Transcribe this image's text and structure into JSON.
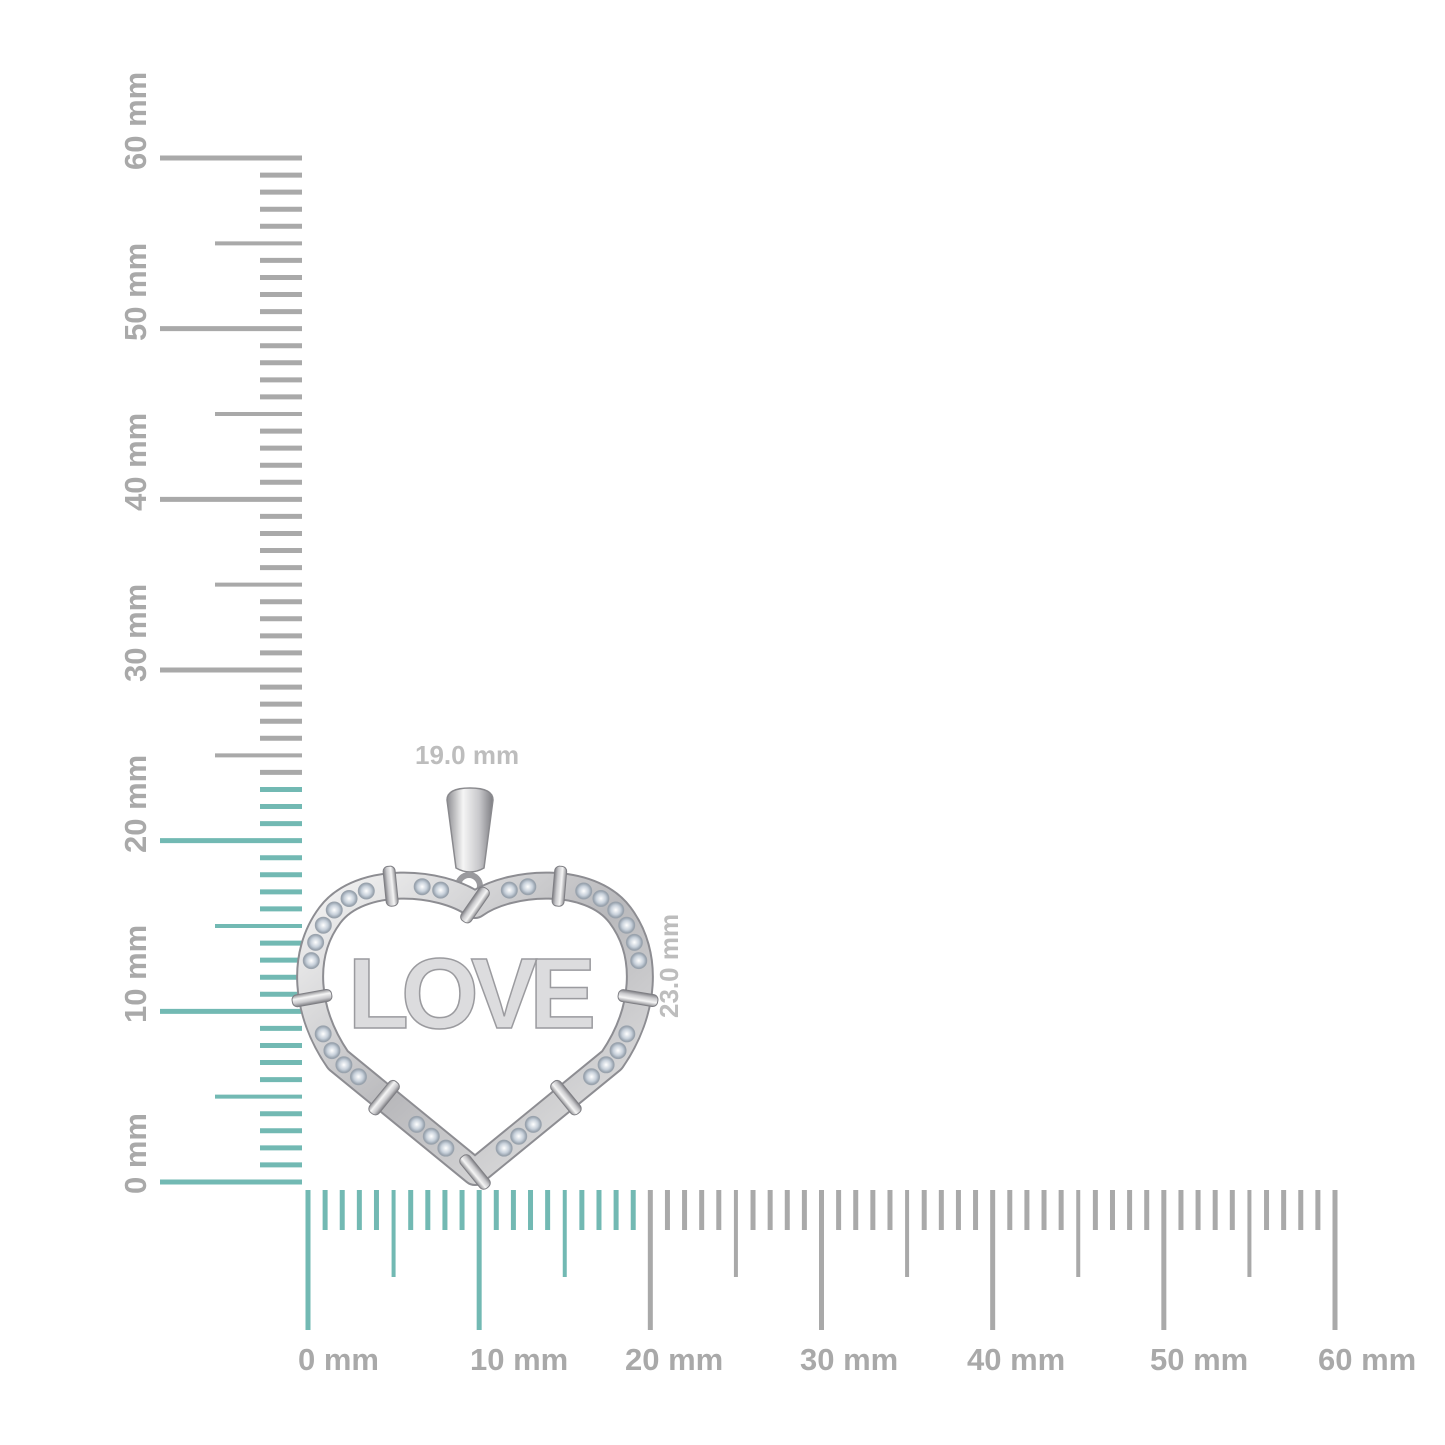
{
  "product": {
    "engraving": "LOVE",
    "width_label": "19.0 mm",
    "height_label": "23.0 mm",
    "width_mm": 19.0,
    "height_mm": 23.0
  },
  "rulers": {
    "unit": "mm",
    "range_mm": [
      0,
      60
    ],
    "highlight_color": "#72b9b3",
    "base_color": "#a9a9a9",
    "vertical_labels": [
      "0 mm",
      "10 mm",
      "20 mm",
      "30 mm",
      "40 mm",
      "50 mm",
      "60 mm"
    ],
    "horizontal_labels": [
      "0 mm",
      "10 mm",
      "20 mm",
      "30 mm",
      "40 mm",
      "50 mm",
      "60 mm"
    ]
  }
}
